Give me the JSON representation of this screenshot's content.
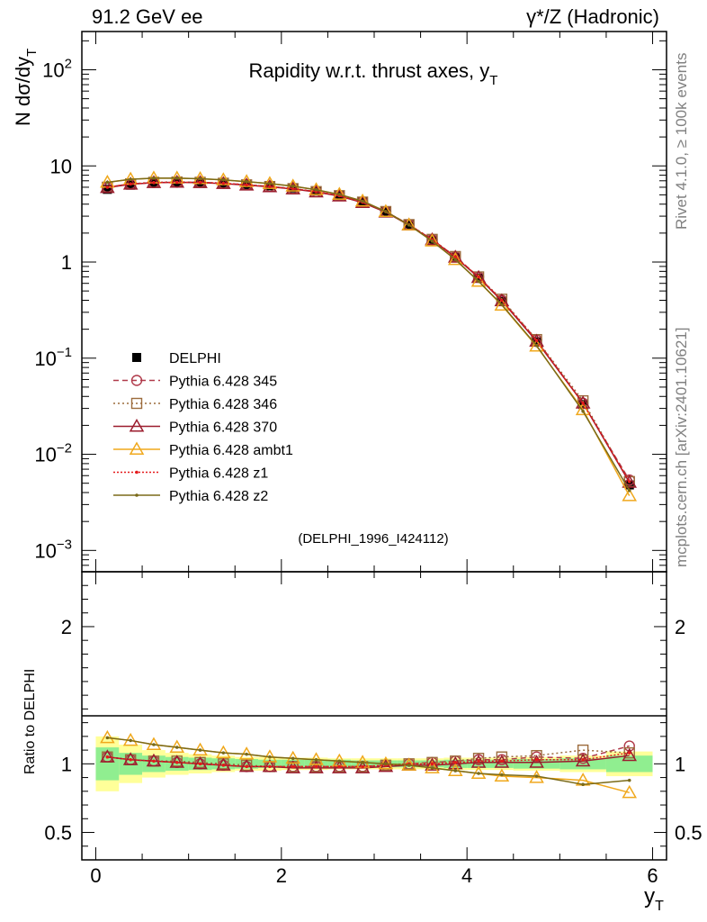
{
  "header": {
    "left": "91.2 GeV ee",
    "right": "γ*/Z (Hadronic)"
  },
  "side": {
    "rivet": "Rivet 4.1.0, ≥ 100k events",
    "mcplots": "mcplots.cern.ch [arXiv:2401.10621]"
  },
  "analysis_tag": "(DELPHI_1996_I424112)",
  "colors": {
    "delphi": "#000000",
    "p345": "#b03a4a",
    "p346": "#9c6b3c",
    "p370": "#9b1c2e",
    "ambt1": "#f0a81c",
    "z1": "#e41a1c",
    "z2": "#7a6a18",
    "band_inner": "#90ee90",
    "band_outer": "#ffff99",
    "side_text": "#808080"
  },
  "chart_data": [
    {
      "type": "line",
      "panel": "main",
      "title": "Rapidity w.r.t. thrust axes, y",
      "title_sub": "T",
      "ylabel": "N  dσ/dy",
      "ylabel_sub": "T",
      "yscale": "log",
      "xlim": [
        -0.15,
        6.15
      ],
      "ylim": [
        0.0006,
        250
      ],
      "y_ticks": [
        {
          "value": 0.001,
          "base": "10",
          "exp": "−3"
        },
        {
          "value": 0.01,
          "base": "10",
          "exp": "−2"
        },
        {
          "value": 0.1,
          "base": "10",
          "exp": "−1"
        },
        {
          "value": 1,
          "base": "1",
          "exp": ""
        },
        {
          "value": 10,
          "base": "10",
          "exp": ""
        },
        {
          "value": 100,
          "base": "10",
          "exp": "2"
        }
      ],
      "x": [
        0.125,
        0.375,
        0.625,
        0.875,
        1.125,
        1.375,
        1.625,
        1.875,
        2.125,
        2.375,
        2.625,
        2.875,
        3.125,
        3.375,
        3.625,
        3.875,
        4.125,
        4.375,
        4.75,
        5.25,
        5.75
      ],
      "series": [
        {
          "name": "DELPHI",
          "key": "delphi",
          "values": [
            5.7,
            6.3,
            6.6,
            6.7,
            6.7,
            6.6,
            6.4,
            6.2,
            5.9,
            5.5,
            4.95,
            4.25,
            3.35,
            2.45,
            1.7,
            1.12,
            0.68,
            0.39,
            0.148,
            0.033,
            0.0048
          ]
        },
        {
          "name": "Pythia 6.428 345",
          "key": "p345",
          "values": [
            6.0,
            6.5,
            6.7,
            6.75,
            6.75,
            6.6,
            6.35,
            6.1,
            5.8,
            5.4,
            4.9,
            4.2,
            3.35,
            2.45,
            1.71,
            1.14,
            0.7,
            0.4,
            0.155,
            0.034,
            0.0054
          ]
        },
        {
          "name": "Pythia 6.428 346",
          "key": "p346",
          "values": [
            6.0,
            6.5,
            6.75,
            6.8,
            6.75,
            6.6,
            6.35,
            6.1,
            5.8,
            5.4,
            4.9,
            4.2,
            3.35,
            2.45,
            1.72,
            1.14,
            0.7,
            0.41,
            0.156,
            0.036,
            0.0052
          ]
        },
        {
          "name": "Pythia 6.428 370",
          "key": "p370",
          "values": [
            5.95,
            6.45,
            6.7,
            6.75,
            6.7,
            6.55,
            6.3,
            6.05,
            5.75,
            5.35,
            4.85,
            4.15,
            3.3,
            2.42,
            1.7,
            1.12,
            0.69,
            0.395,
            0.15,
            0.034,
            0.0051
          ]
        },
        {
          "name": "Pythia 6.428 ambt1",
          "key": "ambt1",
          "values": [
            6.75,
            7.25,
            7.45,
            7.45,
            7.35,
            7.15,
            6.85,
            6.55,
            6.15,
            5.65,
            5.05,
            4.3,
            3.35,
            2.43,
            1.65,
            1.06,
            0.63,
            0.355,
            0.133,
            0.029,
            0.0037
          ]
        },
        {
          "name": "Pythia 6.428 z1",
          "key": "z1",
          "values": [
            6.0,
            6.5,
            6.7,
            6.75,
            6.75,
            6.6,
            6.35,
            6.1,
            5.8,
            5.4,
            4.9,
            4.2,
            3.35,
            2.45,
            1.71,
            1.13,
            0.7,
            0.4,
            0.153,
            0.034,
            0.0052
          ]
        },
        {
          "name": "Pythia 6.428 z2",
          "key": "z2",
          "values": [
            6.75,
            7.25,
            7.45,
            7.45,
            7.35,
            7.15,
            6.85,
            6.55,
            6.15,
            5.65,
            5.05,
            4.3,
            3.35,
            2.43,
            1.65,
            1.06,
            0.63,
            0.36,
            0.135,
            0.028,
            0.0042
          ]
        }
      ]
    },
    {
      "type": "line",
      "panel": "ratio",
      "ylabel": "Ratio to DELPHI",
      "xlabel": "y",
      "xlabel_sub": "T",
      "xlim": [
        -0.15,
        6.15
      ],
      "ylim": [
        0.3,
        2.4
      ],
      "y_ticks": [
        0.5,
        1,
        2
      ],
      "y_tick_labels": [
        "0.5",
        "1",
        "2"
      ],
      "x_ticks": [
        0,
        2,
        4,
        6
      ],
      "x_tick_labels": [
        "0",
        "2",
        "4",
        "6"
      ],
      "bin_edges": [
        0,
        0.25,
        0.5,
        0.75,
        1.0,
        1.25,
        1.5,
        1.75,
        2.0,
        2.25,
        2.5,
        2.75,
        3.0,
        3.25,
        3.5,
        3.75,
        4.0,
        4.25,
        4.5,
        5.0,
        5.5,
        6.0
      ],
      "band_inner": [
        0.12,
        0.08,
        0.06,
        0.05,
        0.045,
        0.04,
        0.035,
        0.03,
        0.03,
        0.03,
        0.03,
        0.025,
        0.025,
        0.025,
        0.025,
        0.03,
        0.03,
        0.03,
        0.035,
        0.04,
        0.06
      ],
      "band_outer": [
        0.2,
        0.14,
        0.1,
        0.08,
        0.07,
        0.06,
        0.05,
        0.05,
        0.045,
        0.045,
        0.04,
        0.04,
        0.04,
        0.04,
        0.04,
        0.045,
        0.045,
        0.045,
        0.05,
        0.06,
        0.09
      ],
      "x": [
        0.125,
        0.375,
        0.625,
        0.875,
        1.125,
        1.375,
        1.625,
        1.875,
        2.125,
        2.375,
        2.625,
        2.875,
        3.125,
        3.375,
        3.625,
        3.875,
        4.125,
        4.375,
        4.75,
        5.25,
        5.75
      ],
      "series": [
        {
          "name": "Pythia 6.428 345",
          "key": "p345",
          "values": [
            1.05,
            1.03,
            1.02,
            1.01,
            1.0,
            0.99,
            0.98,
            0.98,
            0.98,
            0.98,
            0.98,
            0.98,
            0.99,
            1.0,
            1.01,
            1.02,
            1.03,
            1.03,
            1.05,
            1.04,
            1.13
          ]
        },
        {
          "name": "Pythia 6.428 346",
          "key": "p346",
          "values": [
            1.05,
            1.03,
            1.02,
            1.02,
            1.01,
            1.0,
            0.99,
            0.98,
            0.98,
            0.98,
            0.98,
            0.98,
            0.99,
            1.0,
            1.01,
            1.02,
            1.04,
            1.05,
            1.06,
            1.1,
            1.08
          ]
        },
        {
          "name": "Pythia 6.428 370",
          "key": "p370",
          "values": [
            1.05,
            1.03,
            1.02,
            1.01,
            1.0,
            0.99,
            0.98,
            0.98,
            0.97,
            0.97,
            0.97,
            0.97,
            0.98,
            0.99,
            0.99,
            1.0,
            1.01,
            1.01,
            1.01,
            1.02,
            1.06
          ]
        },
        {
          "name": "Pythia 6.428 ambt1",
          "key": "ambt1",
          "values": [
            1.19,
            1.17,
            1.14,
            1.12,
            1.1,
            1.08,
            1.07,
            1.05,
            1.04,
            1.03,
            1.02,
            1.01,
            1.0,
            0.99,
            0.97,
            0.95,
            0.93,
            0.91,
            0.9,
            0.88,
            0.79
          ]
        },
        {
          "name": "Pythia 6.428 z1",
          "key": "z1",
          "values": [
            1.05,
            1.03,
            1.02,
            1.01,
            1.0,
            0.99,
            0.98,
            0.98,
            0.98,
            0.98,
            0.98,
            0.98,
            0.99,
            1.0,
            1.0,
            1.01,
            1.02,
            1.02,
            1.03,
            1.03,
            1.08
          ]
        },
        {
          "name": "Pythia 6.428 z2",
          "key": "z2",
          "values": [
            1.19,
            1.17,
            1.14,
            1.12,
            1.1,
            1.08,
            1.07,
            1.05,
            1.04,
            1.03,
            1.02,
            1.01,
            1.0,
            0.99,
            0.97,
            0.95,
            0.93,
            0.92,
            0.91,
            0.85,
            0.88
          ]
        }
      ]
    }
  ],
  "legend": [
    {
      "label": "DELPHI",
      "key": "delphi",
      "marker": "square",
      "dash": ""
    },
    {
      "label": "Pythia 6.428 345",
      "key": "p345",
      "marker": "circle",
      "dash": "6,4"
    },
    {
      "label": "Pythia 6.428 346",
      "key": "p346",
      "marker": "square-open",
      "dash": "2,3"
    },
    {
      "label": "Pythia 6.428 370",
      "key": "p370",
      "marker": "triangle",
      "dash": ""
    },
    {
      "label": "Pythia 6.428 ambt1",
      "key": "ambt1",
      "marker": "triangle",
      "dash": ""
    },
    {
      "label": "Pythia 6.428 z1",
      "key": "z1",
      "marker": "dot",
      "dash": "2,2"
    },
    {
      "label": "Pythia 6.428 z2",
      "key": "z2",
      "marker": "dot",
      "dash": ""
    }
  ]
}
